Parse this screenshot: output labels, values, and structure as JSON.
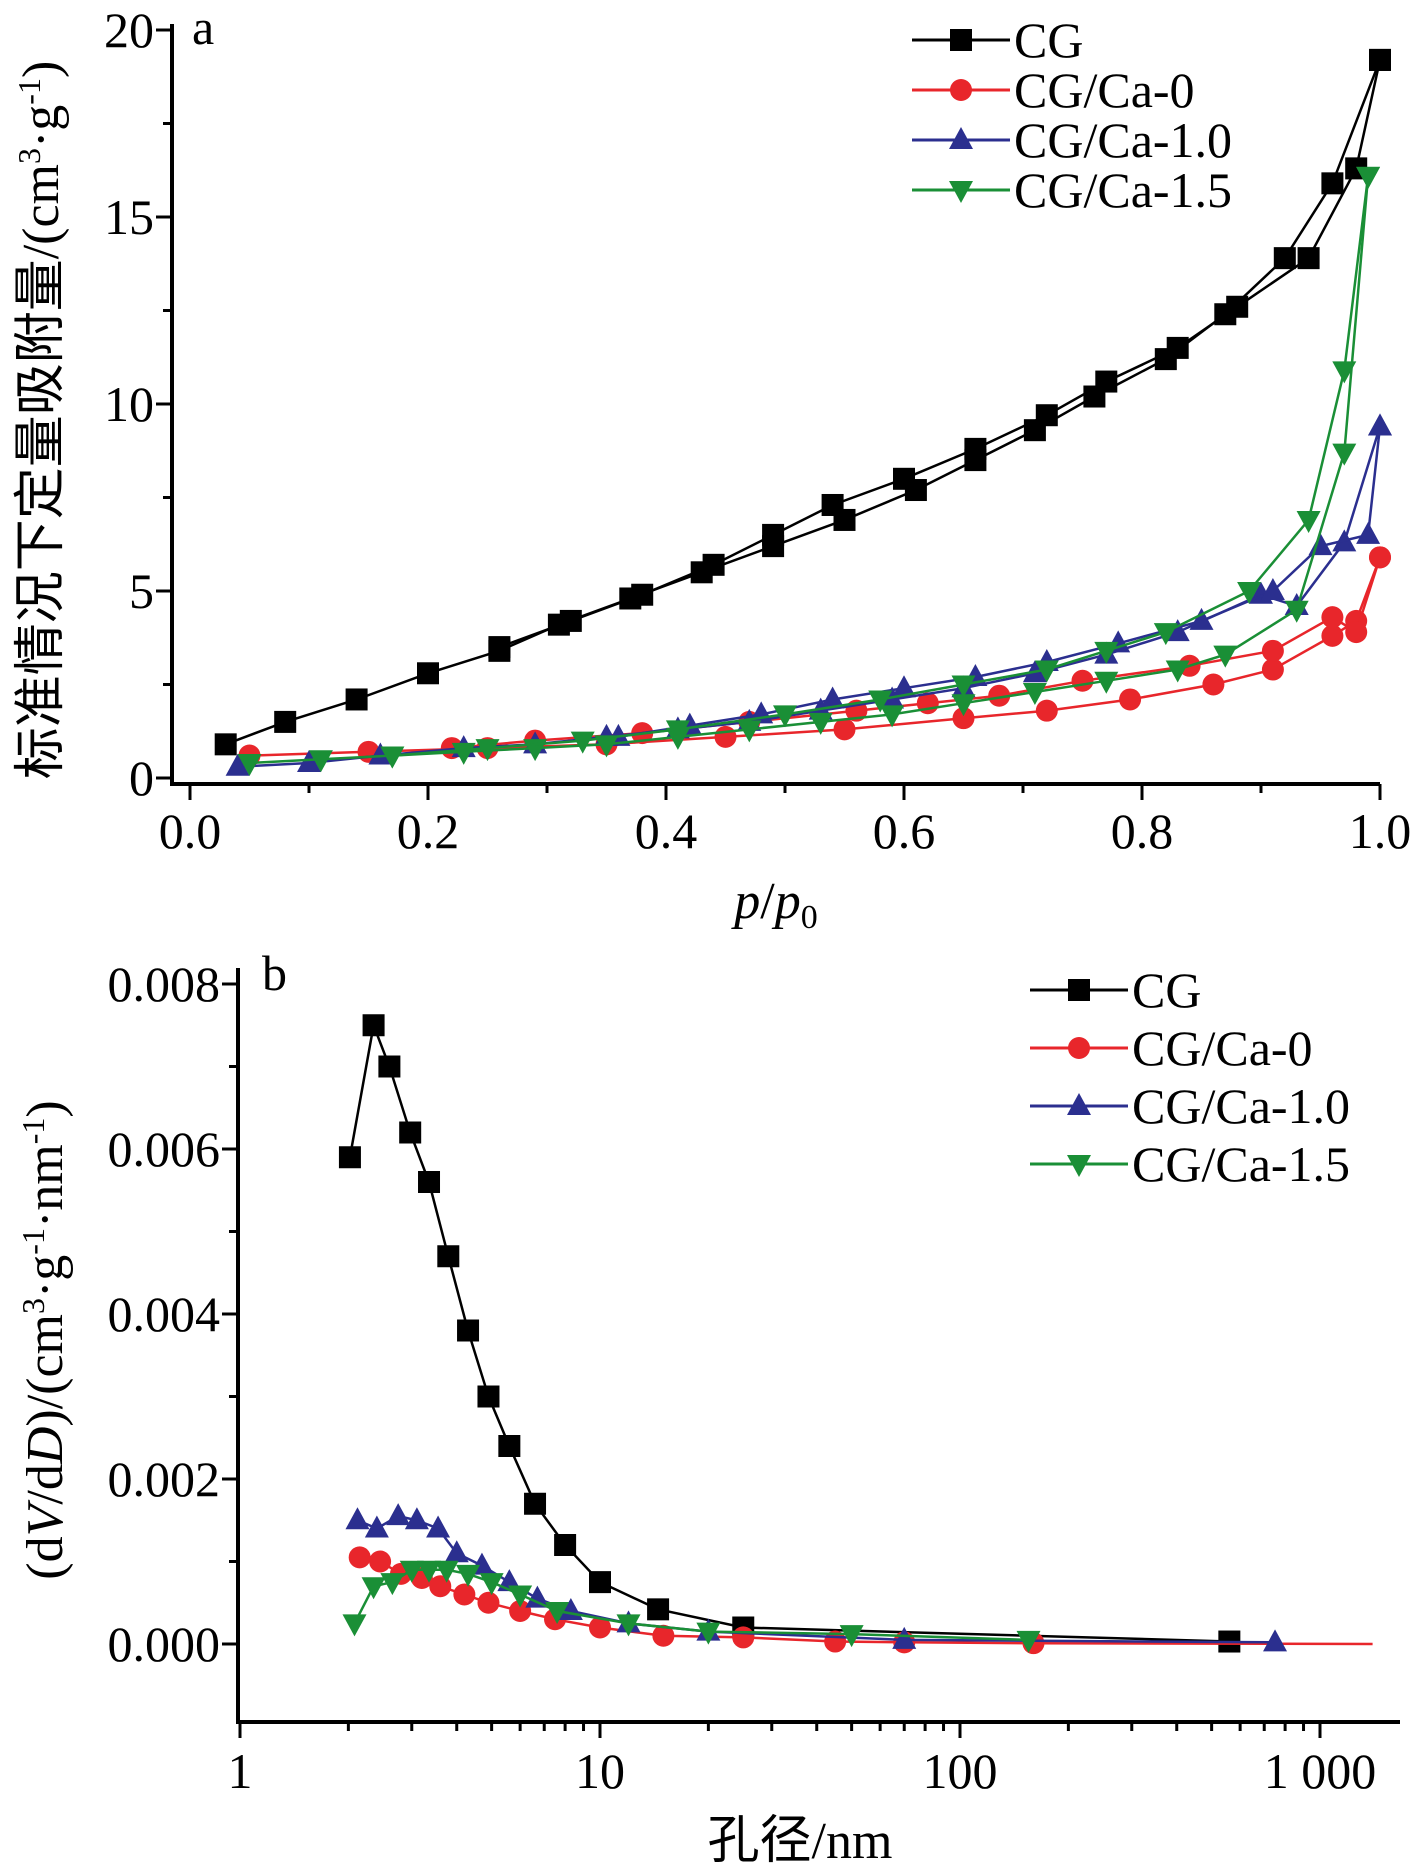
{
  "chart_data": [
    {
      "panel": "a",
      "type": "line",
      "xlabel_italic_1": "p",
      "xlabel_sep": "/",
      "xlabel_italic_2": "p",
      "xlabel_sub": "0",
      "ylabel_main": "标准情况下定量吸附量/(cm",
      "ylabel_sup1": "3",
      "ylabel_mid": "·g",
      "ylabel_sup2": "-1",
      "ylabel_end": ")",
      "xlim": [
        0.0,
        1.0
      ],
      "ylim": [
        0,
        20
      ],
      "xticks": [
        0.0,
        0.2,
        0.4,
        0.6,
        0.8,
        1.0
      ],
      "xtick_labels": [
        "0.0",
        "0.2",
        "0.4",
        "0.6",
        "0.8",
        "1.0"
      ],
      "yticks": [
        0,
        5,
        10,
        15,
        20
      ],
      "ytick_labels": [
        "0",
        "5",
        "10",
        "15",
        "20"
      ],
      "legend_position": "top-right",
      "series": [
        {
          "name": "CG",
          "color": "#000000",
          "marker": "square",
          "adsorption": {
            "x": [
              0.03,
              0.08,
              0.14,
              0.2,
              0.26,
              0.31,
              0.37,
              0.43,
              0.49,
              0.55,
              0.61,
              0.66,
              0.71,
              0.76,
              0.82,
              0.87,
              0.92,
              0.96,
              1.0
            ],
            "y": [
              0.9,
              1.5,
              2.1,
              2.8,
              3.4,
              4.1,
              4.8,
              5.5,
              6.2,
              6.9,
              7.7,
              8.5,
              9.3,
              10.2,
              11.2,
              12.4,
              13.9,
              15.9,
              19.2
            ]
          },
          "desorption": {
            "x": [
              1.0,
              0.98,
              0.94,
              0.88,
              0.83,
              0.77,
              0.72,
              0.66,
              0.6,
              0.54,
              0.49,
              0.44,
              0.38,
              0.32,
              0.26
            ],
            "y": [
              19.2,
              16.3,
              13.9,
              12.6,
              11.5,
              10.6,
              9.7,
              8.8,
              8.0,
              7.3,
              6.5,
              5.7,
              4.9,
              4.2,
              3.5
            ]
          }
        },
        {
          "name": "CG/Ca-0",
          "color": "#e8262b",
          "marker": "circle",
          "adsorption": {
            "x": [
              0.05,
              0.15,
              0.25,
              0.35,
              0.45,
              0.55,
              0.65,
              0.72,
              0.79,
              0.86,
              0.91,
              0.96,
              0.98,
              1.0
            ],
            "y": [
              0.6,
              0.7,
              0.8,
              0.9,
              1.1,
              1.3,
              1.6,
              1.8,
              2.1,
              2.5,
              2.9,
              3.8,
              4.2,
              5.9
            ]
          },
          "desorption": {
            "x": [
              1.0,
              0.98,
              0.96,
              0.91,
              0.84,
              0.75,
              0.68,
              0.62,
              0.56,
              0.47,
              0.38,
              0.29,
              0.22
            ],
            "y": [
              5.9,
              3.9,
              4.3,
              3.4,
              3.0,
              2.6,
              2.2,
              2.0,
              1.8,
              1.5,
              1.2,
              1.0,
              0.8
            ]
          }
        },
        {
          "name": "CG/Ca-1.0",
          "color": "#2b2f8f",
          "marker": "triangle-up",
          "adsorption": {
            "x": [
              0.04,
              0.1,
              0.16,
              0.23,
              0.29,
              0.35,
              0.41,
              0.47,
              0.53,
              0.59,
              0.65,
              0.71,
              0.77,
              0.83,
              0.9,
              0.93,
              0.97,
              1.0
            ],
            "y": [
              0.3,
              0.4,
              0.6,
              0.8,
              0.9,
              1.1,
              1.3,
              1.5,
              1.8,
              2.1,
              2.4,
              2.8,
              3.3,
              3.9,
              4.9,
              4.6,
              6.3,
              9.4
            ]
          },
          "desorption": {
            "x": [
              1.0,
              0.99,
              0.95,
              0.91,
              0.85,
              0.78,
              0.72,
              0.66,
              0.6,
              0.54,
              0.48,
              0.42,
              0.36
            ],
            "y": [
              9.4,
              6.5,
              6.2,
              5.0,
              4.2,
              3.6,
              3.1,
              2.7,
              2.4,
              2.1,
              1.7,
              1.4,
              1.1
            ]
          }
        },
        {
          "name": "CG/Ca-1.5",
          "color": "#1a8f36",
          "marker": "triangle-down",
          "adsorption": {
            "x": [
              0.05,
              0.11,
              0.17,
              0.23,
              0.29,
              0.35,
              0.41,
              0.47,
              0.53,
              0.59,
              0.65,
              0.71,
              0.77,
              0.83,
              0.87,
              0.93,
              0.97,
              0.99
            ],
            "y": [
              0.4,
              0.5,
              0.6,
              0.7,
              0.8,
              0.9,
              1.1,
              1.3,
              1.5,
              1.7,
              2.0,
              2.3,
              2.6,
              2.9,
              3.3,
              4.5,
              8.7,
              16.1
            ]
          },
          "desorption": {
            "x": [
              0.99,
              0.97,
              0.94,
              0.89,
              0.82,
              0.77,
              0.72,
              0.65,
              0.58,
              0.5,
              0.41,
              0.33,
              0.25,
              0.17
            ],
            "y": [
              16.1,
              10.9,
              6.9,
              5.0,
              3.9,
              3.4,
              2.9,
              2.5,
              2.1,
              1.7,
              1.3,
              1.0,
              0.8,
              0.6
            ]
          }
        }
      ]
    },
    {
      "panel": "b",
      "type": "line",
      "xlabel": "孔径/nm",
      "ylabel_1": "(d",
      "ylabel_italic_1": "V",
      "ylabel_2": "/d",
      "ylabel_italic_2": "D",
      "ylabel_3": ")/(cm",
      "ylabel_sup1": "3",
      "ylabel_4": "·g",
      "ylabel_sup2": "-1",
      "ylabel_5": "·nm",
      "ylabel_sup3": "-1",
      "ylabel_6": ")",
      "xscale": "log",
      "xlim": [
        1,
        1500
      ],
      "ylim": [
        -0.001,
        0.008
      ],
      "xticks": [
        1,
        10,
        100,
        1000
      ],
      "xtick_labels": [
        "1",
        "10",
        "100",
        "1 000"
      ],
      "yticks": [
        0.0,
        0.002,
        0.004,
        0.006,
        0.008
      ],
      "ytick_labels": [
        "0.000",
        "0.002",
        "0.004",
        "0.006",
        "0.008"
      ],
      "legend_position": "top-right",
      "series": [
        {
          "name": "CG",
          "color": "#000000",
          "marker": "square",
          "x": [
            2.02,
            2.35,
            2.6,
            2.97,
            3.35,
            3.79,
            4.3,
            4.9,
            5.6,
            6.6,
            8.0,
            10.0,
            14.5,
            25,
            560
          ],
          "y": [
            0.0059,
            0.0075,
            0.007,
            0.0062,
            0.0056,
            0.0047,
            0.0038,
            0.003,
            0.0024,
            0.0017,
            0.0012,
            0.00075,
            0.00042,
            0.0002,
            3e-05
          ]
        },
        {
          "name": "CG/Ca-0",
          "color": "#e8262b",
          "marker": "circle",
          "x": [
            2.15,
            2.45,
            2.8,
            3.2,
            3.6,
            4.2,
            4.9,
            6.0,
            7.5,
            10,
            15,
            25,
            45,
            70,
            160,
            1400
          ],
          "y": [
            0.00105,
            0.001,
            0.00085,
            0.0008,
            0.0007,
            0.0006,
            0.0005,
            0.0004,
            0.0003,
            0.0002,
            0.0001,
            8e-05,
            3e-05,
            2e-05,
            1e-05,
            0.0
          ]
        },
        {
          "name": "CG/Ca-1.0",
          "color": "#2b2f8f",
          "marker": "triangle-up",
          "x": [
            2.12,
            2.4,
            2.75,
            3.1,
            3.55,
            4.0,
            4.7,
            5.6,
            6.7,
            8.3,
            12,
            20,
            70,
            750
          ],
          "y": [
            0.0015,
            0.0014,
            0.00155,
            0.0015,
            0.0014,
            0.0011,
            0.00095,
            0.00075,
            0.00055,
            0.0004,
            0.00025,
            0.00015,
            5e-05,
            2e-05
          ]
        },
        {
          "name": "CG/Ca-1.5",
          "color": "#1a8f36",
          "marker": "triangle-down",
          "x": [
            2.08,
            2.35,
            2.65,
            3.0,
            3.35,
            3.75,
            4.3,
            5.0,
            6.0,
            7.6,
            12,
            20,
            50,
            155
          ],
          "y": [
            0.00025,
            0.0007,
            0.00075,
            0.0009,
            0.0009,
            0.0009,
            0.00085,
            0.00075,
            0.0006,
            0.0004,
            0.00025,
            0.00015,
            0.00012,
            5e-05
          ]
        }
      ]
    }
  ]
}
